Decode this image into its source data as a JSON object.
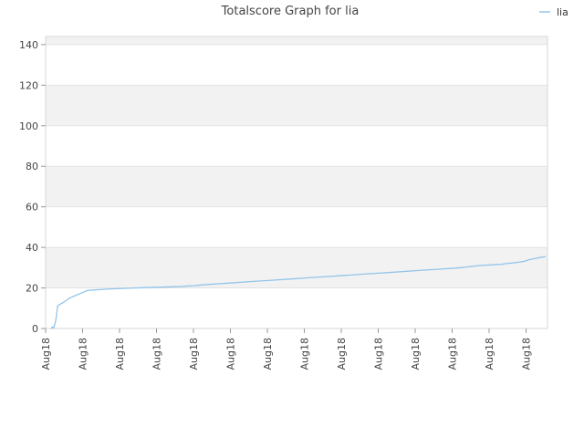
{
  "chart_data": {
    "type": "line",
    "title": "Totalscore Graph for lia",
    "xlabel": "",
    "ylabel": "",
    "ylim": [
      0,
      144
    ],
    "y_ticks": [
      0,
      20,
      40,
      60,
      80,
      100,
      120,
      140
    ],
    "x_tick_labels": [
      "Aug18",
      "Aug18",
      "Aug18",
      "Aug18",
      "Aug18",
      "Aug18",
      "Aug18",
      "Aug18",
      "Aug18",
      "Aug18",
      "Aug18",
      "Aug18",
      "Aug18",
      "Aug18"
    ],
    "grid": "horizontal alternating bands",
    "legend_position": "top-right",
    "series": [
      {
        "name": "lia",
        "color": "#92c5ea",
        "x": [
          0,
          1,
          1.5,
          2,
          3,
          4,
          5.5,
          7,
          8.5,
          14,
          20,
          40,
          60,
          80,
          100,
          120,
          135,
          140,
          145,
          150,
          155,
          158,
          160,
          163,
          165,
          170,
          180,
          200,
          220,
          240,
          260,
          280,
          300,
          320,
          340,
          360,
          380,
          400,
          420,
          440,
          450,
          455,
          465,
          480,
          490,
          495,
          500,
          505,
          510,
          513,
          516,
          518,
          521,
          525,
          532,
          538
        ],
        "y": [
          0,
          0.5,
          0.3,
          0.8,
          0.4,
          2,
          5,
          11,
          11.6,
          13,
          15,
          18.8,
          19.4,
          19.8,
          20.1,
          20.4,
          20.6,
          20.7,
          20.8,
          21,
          21.1,
          21.2,
          21.3,
          21.4,
          21.5,
          21.7,
          22,
          22.6,
          23.2,
          23.8,
          24.4,
          25,
          25.6,
          26.2,
          26.8,
          27.4,
          28,
          28.6,
          29.2,
          29.8,
          30.2,
          30.5,
          31,
          31.4,
          31.7,
          32,
          32.2,
          32.5,
          32.8,
          33,
          33.3,
          33.6,
          34,
          34.4,
          35,
          35.5
        ]
      }
    ]
  }
}
